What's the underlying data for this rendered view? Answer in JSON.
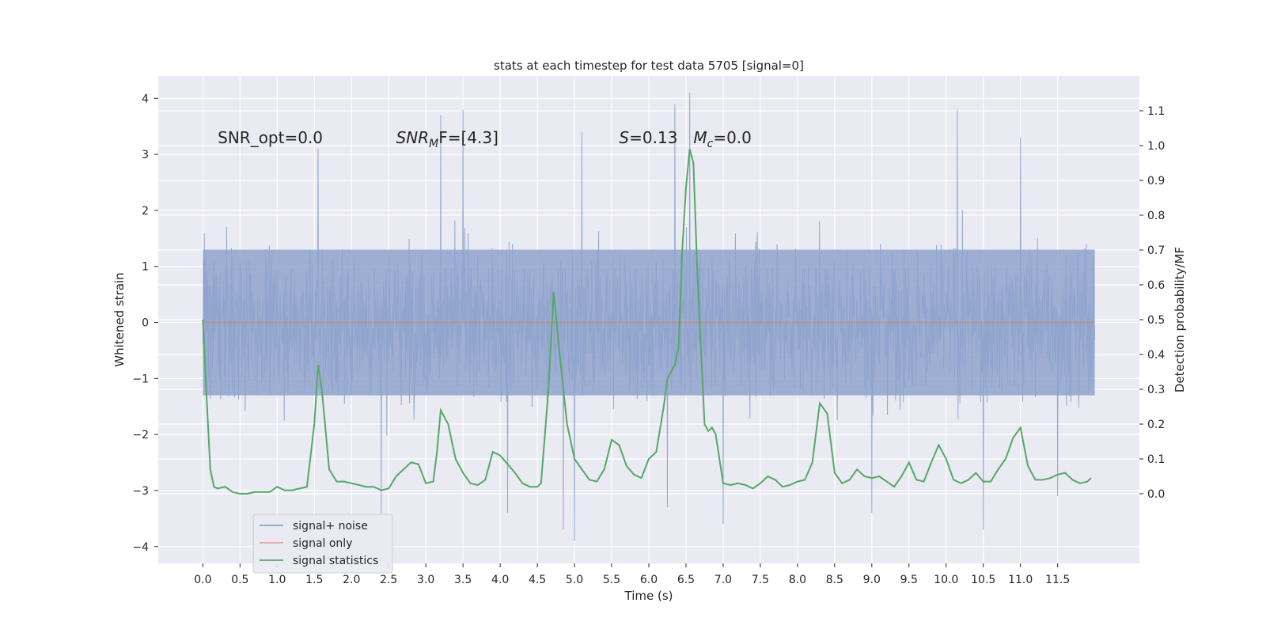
{
  "chart_data": {
    "type": "line",
    "title": "stats at each timestep for test data 5705 [signal=0]",
    "xlabel": "Time (s)",
    "ylabel": "Whitened strain",
    "ylabel_right": "Detection probability/MF",
    "xlim": [
      -0.6,
      12.6
    ],
    "ylim": [
      -4.3,
      4.4
    ],
    "ylim_right": [
      -0.2,
      1.2
    ],
    "x_ticks": [
      0.0,
      0.5,
      1.0,
      1.5,
      2.0,
      2.5,
      3.0,
      3.5,
      4.0,
      4.5,
      5.0,
      5.5,
      6.0,
      6.5,
      7.0,
      7.5,
      8.0,
      8.5,
      9.0,
      9.5,
      10.0,
      10.5,
      11.0,
      11.5
    ],
    "x_tick_labels": [
      "0.0",
      "0.5",
      "1.0",
      "1.5",
      "2.0",
      "2.5",
      "3.0",
      "3.5",
      "4.0",
      "4.5",
      "5.0",
      "5.5",
      "6.0",
      "6.5",
      "7.0",
      "7.5",
      "8.0",
      "8.5",
      "9.0",
      "9.5",
      "10.0",
      "10.5",
      "11.0",
      "11.5"
    ],
    "y_ticks": [
      -4,
      -3,
      -2,
      -1,
      0,
      1,
      2,
      3,
      4
    ],
    "y_tick_labels": [
      "−4",
      "−3",
      "−2",
      "−1",
      "0",
      "1",
      "2",
      "3",
      "4"
    ],
    "y_right_ticks": [
      0.0,
      0.1,
      0.2,
      0.3,
      0.4,
      0.5,
      0.6,
      0.7,
      0.8,
      0.9,
      1.0,
      1.1
    ],
    "y_right_tick_labels": [
      "0.0",
      "0.1",
      "0.2",
      "0.3",
      "0.4",
      "0.5",
      "0.6",
      "0.7",
      "0.8",
      "0.9",
      "1.0",
      "1.1"
    ],
    "grid": true,
    "legend_position": "lower-left",
    "annotations": [
      {
        "text": "SNR_opt=0.0",
        "x": 0.2,
        "y": 3.3
      },
      {
        "text": "SNR",
        "sub": "M",
        "after": "F=[4.3]",
        "italic": true,
        "x": 2.6,
        "y": 3.3
      },
      {
        "text": "S",
        "after": "=0.13",
        "italic": true,
        "x": 5.6,
        "y": 3.3
      },
      {
        "text": "M",
        "sub": "c",
        "after": "=0.0",
        "italic": true,
        "x": 6.6,
        "y": 3.3
      }
    ],
    "series": [
      {
        "name": "signal+ noise",
        "color": "#8fa3cc",
        "axis": "left",
        "t_range": [
          0.0,
          12.0
        ],
        "envelope": {
          "upper_typical": 2.0,
          "lower_typical": -2.0,
          "core_band": [
            -1.3,
            1.3
          ],
          "peaks_upper": [
            [
              1.55,
              3.1
            ],
            [
              3.2,
              3.7
            ],
            [
              3.5,
              3.8
            ],
            [
              5.1,
              3.4
            ],
            [
              6.35,
              3.9
            ],
            [
              6.55,
              4.1
            ],
            [
              10.15,
              3.8
            ],
            [
              11.0,
              3.3
            ]
          ],
          "peaks_lower": [
            [
              2.4,
              -3.4
            ],
            [
              4.1,
              -3.4
            ],
            [
              4.85,
              -3.7
            ],
            [
              5.0,
              -3.9
            ],
            [
              6.25,
              -3.3
            ],
            [
              7.0,
              -3.6
            ],
            [
              9.0,
              -3.4
            ],
            [
              10.5,
              -3.7
            ],
            [
              11.5,
              -3.1
            ]
          ]
        }
      },
      {
        "name": "signal only",
        "color": "#dd8452",
        "axis": "left",
        "x": [
          0.0,
          12.0
        ],
        "y": [
          0.0,
          0.0
        ]
      },
      {
        "name": "signal statistics",
        "color": "#55a868",
        "axis": "right",
        "x": [
          0.0,
          0.05,
          0.1,
          0.15,
          0.2,
          0.3,
          0.4,
          0.5,
          0.6,
          0.7,
          0.8,
          0.9,
          1.0,
          1.1,
          1.2,
          1.3,
          1.4,
          1.5,
          1.55,
          1.6,
          1.7,
          1.8,
          1.9,
          2.0,
          2.1,
          2.2,
          2.3,
          2.4,
          2.5,
          2.6,
          2.7,
          2.8,
          2.9,
          3.0,
          3.1,
          3.15,
          3.2,
          3.3,
          3.4,
          3.5,
          3.6,
          3.7,
          3.8,
          3.9,
          4.0,
          4.1,
          4.2,
          4.3,
          4.4,
          4.5,
          4.55,
          4.65,
          4.72,
          4.8,
          4.9,
          5.0,
          5.1,
          5.2,
          5.3,
          5.4,
          5.5,
          5.6,
          5.7,
          5.8,
          5.9,
          6.0,
          6.1,
          6.2,
          6.25,
          6.3,
          6.35,
          6.4,
          6.45,
          6.5,
          6.55,
          6.6,
          6.65,
          6.7,
          6.75,
          6.8,
          6.85,
          6.9,
          7.0,
          7.1,
          7.2,
          7.3,
          7.4,
          7.5,
          7.6,
          7.7,
          7.8,
          7.9,
          8.0,
          8.1,
          8.2,
          8.3,
          8.4,
          8.5,
          8.6,
          8.7,
          8.8,
          8.9,
          9.0,
          9.1,
          9.2,
          9.3,
          9.4,
          9.5,
          9.6,
          9.7,
          9.8,
          9.9,
          10.0,
          10.1,
          10.2,
          10.3,
          10.4,
          10.5,
          10.6,
          10.7,
          10.8,
          10.9,
          11.0,
          11.1,
          11.2,
          11.3,
          11.4,
          11.5,
          11.6,
          11.7,
          11.8,
          11.9,
          11.95
        ],
        "y": [
          0.5,
          0.28,
          0.07,
          0.02,
          0.015,
          0.02,
          0.005,
          0.0,
          0.0,
          0.005,
          0.005,
          0.005,
          0.02,
          0.01,
          0.01,
          0.015,
          0.02,
          0.2,
          0.37,
          0.3,
          0.07,
          0.035,
          0.035,
          0.03,
          0.025,
          0.02,
          0.02,
          0.01,
          0.015,
          0.05,
          0.07,
          0.09,
          0.085,
          0.03,
          0.035,
          0.12,
          0.24,
          0.2,
          0.1,
          0.06,
          0.03,
          0.025,
          0.04,
          0.12,
          0.11,
          0.085,
          0.06,
          0.03,
          0.02,
          0.02,
          0.03,
          0.3,
          0.58,
          0.4,
          0.2,
          0.1,
          0.07,
          0.04,
          0.035,
          0.07,
          0.155,
          0.14,
          0.08,
          0.055,
          0.045,
          0.1,
          0.12,
          0.25,
          0.33,
          0.35,
          0.37,
          0.42,
          0.7,
          0.88,
          0.99,
          0.95,
          0.65,
          0.42,
          0.2,
          0.18,
          0.19,
          0.17,
          0.03,
          0.025,
          0.03,
          0.025,
          0.015,
          0.03,
          0.05,
          0.04,
          0.02,
          0.025,
          0.035,
          0.04,
          0.09,
          0.26,
          0.23,
          0.06,
          0.03,
          0.04,
          0.07,
          0.05,
          0.045,
          0.05,
          0.035,
          0.02,
          0.05,
          0.09,
          0.04,
          0.035,
          0.09,
          0.14,
          0.1,
          0.04,
          0.03,
          0.04,
          0.06,
          0.035,
          0.035,
          0.07,
          0.1,
          0.16,
          0.19,
          0.08,
          0.04,
          0.04,
          0.045,
          0.055,
          0.06,
          0.04,
          0.03,
          0.035,
          0.045
        ]
      }
    ]
  }
}
